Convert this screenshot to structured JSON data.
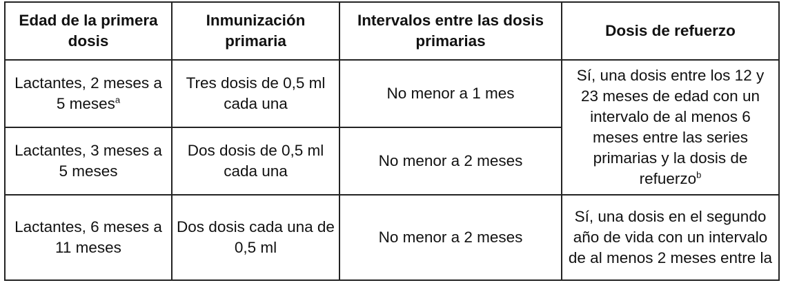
{
  "headers": [
    "Edad de la primera dosis",
    "Inmunización primaria",
    "Intervalos entre las dosis primarias",
    "Dosis de refuerzo"
  ],
  "rows": [
    {
      "edad": "Lactantes, 2 meses a 5 meses",
      "edad_sup": "a",
      "inmunizacion": "Tres dosis de 0,5 ml cada una",
      "intervalo": "No menor a 1 mes",
      "refuerzo": "Sí, una dosis entre los 12 y 23 meses de edad con un intervalo de al menos 6 meses entre las series primarias y la dosis de refuerzo",
      "refuerzo_sup": "b"
    },
    {
      "edad": "Lactantes, 3 meses a 5 meses",
      "inmunizacion": "Dos dosis de 0,5 ml cada una",
      "intervalo": "No menor a 2 meses"
    },
    {
      "edad": "Lactantes, 6 meses a 11 meses",
      "inmunizacion": "Dos dosis cada una de 0,5 ml",
      "intervalo": "No menor a 2 meses",
      "refuerzo": "Sí, una dosis en el segundo año de vida con un intervalo de al menos 2 meses entre la"
    }
  ]
}
